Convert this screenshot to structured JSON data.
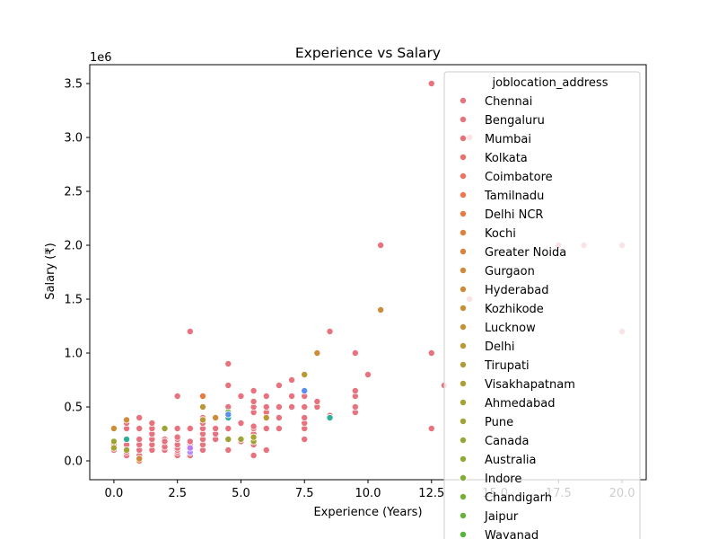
{
  "chart_data": {
    "type": "scatter",
    "title": "Experience vs Salary",
    "xlabel": "Experience (Years)",
    "ylabel": "Salary (₹)",
    "y_offset_label": "1e6",
    "xlim": [
      -0.95,
      20.95
    ],
    "ylim": [
      -0.175,
      3.675
    ],
    "y_unit_multiplier": 1000000,
    "x_ticks": [
      0.0,
      2.5,
      5.0,
      7.5,
      10.0,
      12.5,
      15.0,
      17.5,
      20.0
    ],
    "x_tick_labels": [
      "0.0",
      "2.5",
      "5.0",
      "7.5",
      "10.0",
      "12.5",
      "15.0",
      "17.5",
      "20.0"
    ],
    "y_ticks": [
      0.0,
      0.5,
      1.0,
      1.5,
      2.0,
      2.5,
      3.0,
      3.5
    ],
    "y_tick_labels": [
      "0.0",
      "0.5",
      "1.0",
      "1.5",
      "2.0",
      "2.5",
      "3.0",
      "3.5"
    ],
    "grid": false,
    "legend": {
      "title": "joblocation_address",
      "placement": "upper right",
      "entries": [
        {
          "label": "Chennai",
          "color": "#e8737e"
        },
        {
          "label": "Bengaluru",
          "color": "#ea727a"
        },
        {
          "label": "Mumbai",
          "color": "#eb7074"
        },
        {
          "label": "Kolkata",
          "color": "#ec6f6c"
        },
        {
          "label": "Coimbatore",
          "color": "#ee7260"
        },
        {
          "label": "Tamilnadu",
          "color": "#f0744d"
        },
        {
          "label": "Delhi NCR",
          "color": "#e77a3f"
        },
        {
          "label": "Kochi",
          "color": "#e07f3c"
        },
        {
          "label": "Greater Noida",
          "color": "#d9843a"
        },
        {
          "label": "Gurgaon",
          "color": "#d38839"
        },
        {
          "label": "Hyderabad",
          "color": "#cd8c38"
        },
        {
          "label": "Kozhikode",
          "color": "#c79037"
        },
        {
          "label": "Lucknow",
          "color": "#c19337"
        },
        {
          "label": "Delhi",
          "color": "#bb9736"
        },
        {
          "label": "Tirupati",
          "color": "#b59936"
        },
        {
          "label": "Visakhapatnam",
          "color": "#ae9d35"
        },
        {
          "label": "Ahmedabad",
          "color": "#a7a035"
        },
        {
          "label": "Pune",
          "color": "#9fa335"
        },
        {
          "label": "Canada",
          "color": "#97a635"
        },
        {
          "label": "Australia",
          "color": "#8ea935"
        },
        {
          "label": "Indore",
          "color": "#83ac36"
        },
        {
          "label": "Chandigarh",
          "color": "#76af36"
        },
        {
          "label": "Jaipur",
          "color": "#67b237"
        },
        {
          "label": "Wayanad",
          "color": "#55b538"
        }
      ]
    },
    "series": [
      {
        "name": "Chennai",
        "color": "#e8737e",
        "points": [
          [
            0.0,
            0.12
          ],
          [
            0.0,
            0.15
          ],
          [
            0.0,
            0.1
          ],
          [
            0.5,
            0.05
          ],
          [
            0.5,
            0.08
          ],
          [
            0.5,
            0.12
          ],
          [
            0.5,
            0.15
          ],
          [
            0.5,
            0.2
          ],
          [
            0.5,
            0.3
          ],
          [
            0.5,
            0.35
          ],
          [
            1.0,
            0.05
          ],
          [
            1.0,
            0.1
          ],
          [
            1.0,
            0.15
          ],
          [
            1.0,
            0.2
          ],
          [
            1.0,
            0.3
          ],
          [
            1.0,
            0.4
          ],
          [
            1.5,
            0.1
          ],
          [
            1.5,
            0.15
          ],
          [
            1.5,
            0.2
          ],
          [
            1.5,
            0.25
          ],
          [
            1.5,
            0.3
          ],
          [
            1.5,
            0.35
          ],
          [
            2.0,
            0.1
          ],
          [
            2.0,
            0.15
          ],
          [
            2.0,
            0.2
          ],
          [
            2.0,
            0.13
          ],
          [
            2.0,
            0.18
          ],
          [
            2.5,
            0.05
          ],
          [
            2.5,
            0.08
          ],
          [
            2.5,
            0.1
          ],
          [
            2.5,
            0.12
          ],
          [
            2.5,
            0.15
          ],
          [
            2.5,
            0.2
          ],
          [
            2.5,
            0.22
          ],
          [
            2.5,
            0.3
          ],
          [
            2.5,
            0.6
          ],
          [
            3.0,
            0.05
          ],
          [
            3.0,
            0.08
          ],
          [
            3.0,
            0.1
          ],
          [
            3.0,
            0.15
          ],
          [
            3.0,
            0.18
          ],
          [
            3.0,
            0.3
          ],
          [
            3.0,
            1.2
          ],
          [
            3.5,
            0.1
          ],
          [
            3.5,
            0.15
          ],
          [
            3.5,
            0.2
          ],
          [
            3.5,
            0.25
          ],
          [
            3.5,
            0.3
          ],
          [
            3.5,
            0.35
          ],
          [
            3.5,
            0.4
          ],
          [
            4.0,
            0.2
          ],
          [
            4.0,
            0.25
          ],
          [
            4.0,
            0.3
          ],
          [
            4.0,
            0.4
          ],
          [
            4.5,
            0.1
          ],
          [
            4.5,
            0.2
          ],
          [
            4.5,
            0.3
          ],
          [
            4.5,
            0.45
          ],
          [
            4.5,
            0.5
          ],
          [
            4.5,
            0.7
          ],
          [
            4.5,
            0.9
          ],
          [
            5.0,
            0.18
          ],
          [
            5.0,
            0.35
          ],
          [
            5.0,
            0.6
          ],
          [
            5.5,
            0.05
          ],
          [
            5.5,
            0.15
          ],
          [
            5.5,
            0.2
          ],
          [
            5.5,
            0.25
          ],
          [
            5.5,
            0.3
          ],
          [
            5.5,
            0.32
          ],
          [
            5.5,
            0.45
          ],
          [
            5.5,
            0.5
          ],
          [
            5.5,
            0.55
          ],
          [
            5.5,
            0.65
          ],
          [
            6.0,
            0.1
          ],
          [
            6.0,
            0.3
          ],
          [
            6.0,
            0.45
          ],
          [
            6.0,
            0.5
          ],
          [
            6.0,
            0.6
          ],
          [
            6.5,
            0.3
          ],
          [
            6.5,
            0.4
          ],
          [
            6.5,
            0.5
          ],
          [
            6.5,
            0.7
          ],
          [
            7.0,
            0.5
          ],
          [
            7.0,
            0.6
          ],
          [
            7.0,
            0.75
          ],
          [
            7.5,
            0.2
          ],
          [
            7.5,
            0.3
          ],
          [
            7.5,
            0.35
          ],
          [
            7.5,
            0.4
          ],
          [
            7.5,
            0.5
          ],
          [
            7.5,
            0.6
          ],
          [
            8.0,
            0.5
          ],
          [
            8.0,
            0.55
          ],
          [
            8.5,
            0.42
          ],
          [
            8.5,
            0.4
          ],
          [
            8.5,
            1.2
          ],
          [
            9.5,
            0.45
          ],
          [
            9.5,
            0.5
          ],
          [
            9.5,
            0.6
          ],
          [
            9.5,
            0.65
          ],
          [
            9.5,
            1.0
          ],
          [
            10.0,
            0.8
          ],
          [
            10.5,
            2.0
          ],
          [
            12.5,
            0.3
          ],
          [
            12.5,
            1.0
          ],
          [
            12.5,
            3.5
          ],
          [
            13.0,
            0.7
          ],
          [
            14.0,
            1.5
          ],
          [
            14.0,
            3.0
          ],
          [
            17.5,
            2.0
          ],
          [
            18.5,
            2.0
          ],
          [
            20.0,
            2.0
          ],
          [
            20.0,
            1.2
          ]
        ]
      },
      {
        "name": "Tamilnadu",
        "color": "#f0744d",
        "points": [
          [
            1.0,
            0.0
          ]
        ]
      },
      {
        "name": "Delhi NCR",
        "color": "#e77a3f",
        "points": [
          [
            3.5,
            0.6
          ]
        ]
      },
      {
        "name": "Hyderabad",
        "color": "#cd8c38",
        "points": [
          [
            10.5,
            1.4
          ],
          [
            8.0,
            1.0
          ],
          [
            1.0,
            0.02
          ],
          [
            0.5,
            0.38
          ],
          [
            0.0,
            0.3
          ],
          [
            4.0,
            0.4
          ]
        ]
      },
      {
        "name": "Delhi",
        "color": "#bb9736",
        "points": [
          [
            7.5,
            0.8
          ],
          [
            6.0,
            0.4
          ],
          [
            3.5,
            0.5
          ],
          [
            3.5,
            0.38
          ]
        ]
      },
      {
        "name": "Pune",
        "color": "#9fa335",
        "points": [
          [
            2.0,
            0.3
          ],
          [
            0.0,
            0.18
          ],
          [
            5.0,
            0.2
          ],
          [
            4.5,
            0.2
          ],
          [
            5.5,
            0.18
          ],
          [
            0.5,
            0.1
          ]
        ]
      },
      {
        "name": "Ahmedabad",
        "color": "#a7a035",
        "points": [
          [
            5.5,
            0.22
          ],
          [
            0.0,
            0.12
          ]
        ]
      },
      {
        "name": "Jaipur",
        "color": "#67b237",
        "points": [
          [
            4.5,
            0.45
          ]
        ]
      },
      {
        "name": "(unlisted teal)",
        "color": "#2fae99",
        "points": [
          [
            0.5,
            0.2
          ],
          [
            4.5,
            0.4
          ],
          [
            8.5,
            0.4
          ]
        ]
      },
      {
        "name": "(unlisted blue)",
        "color": "#5a8ff2",
        "points": [
          [
            7.5,
            0.65
          ],
          [
            4.5,
            0.43
          ]
        ]
      },
      {
        "name": "(unlisted purple)",
        "color": "#b48ef6",
        "points": [
          [
            3.0,
            0.08
          ]
        ]
      },
      {
        "name": "(unlisted lilac)",
        "color": "#c07cf5",
        "points": [
          [
            3.0,
            0.12
          ]
        ]
      }
    ]
  }
}
